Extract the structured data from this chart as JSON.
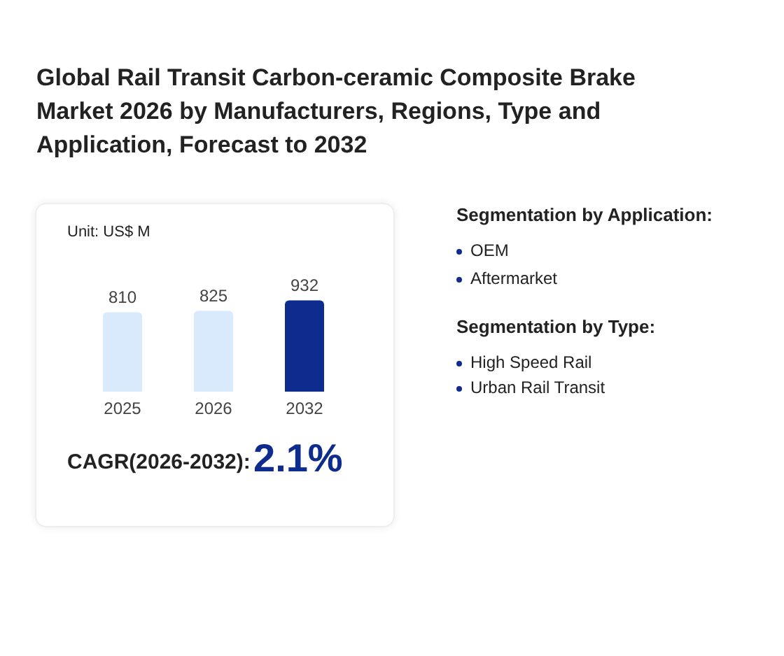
{
  "chart_data": {
    "type": "bar",
    "title": "Global Rail Transit Carbon-ceramic Composite Brake Market 2026 by Manufacturers, Regions, Type and Application, Forecast to 2032",
    "categories": [
      "2025",
      "2026",
      "2032"
    ],
    "values": [
      810,
      825,
      932
    ],
    "colors": [
      "#d9eafc",
      "#d9eafc",
      "#0e2c8e"
    ],
    "data_labels": true,
    "annotations": [
      "Unit: US$ M",
      "CAGR(2026-2032):",
      "2.1%",
      "Segmentation by Application:",
      "OEM",
      "Aftermarket",
      "Segmentation by Type:",
      "High Speed Rail",
      "Urban Rail Transit"
    ]
  }
}
